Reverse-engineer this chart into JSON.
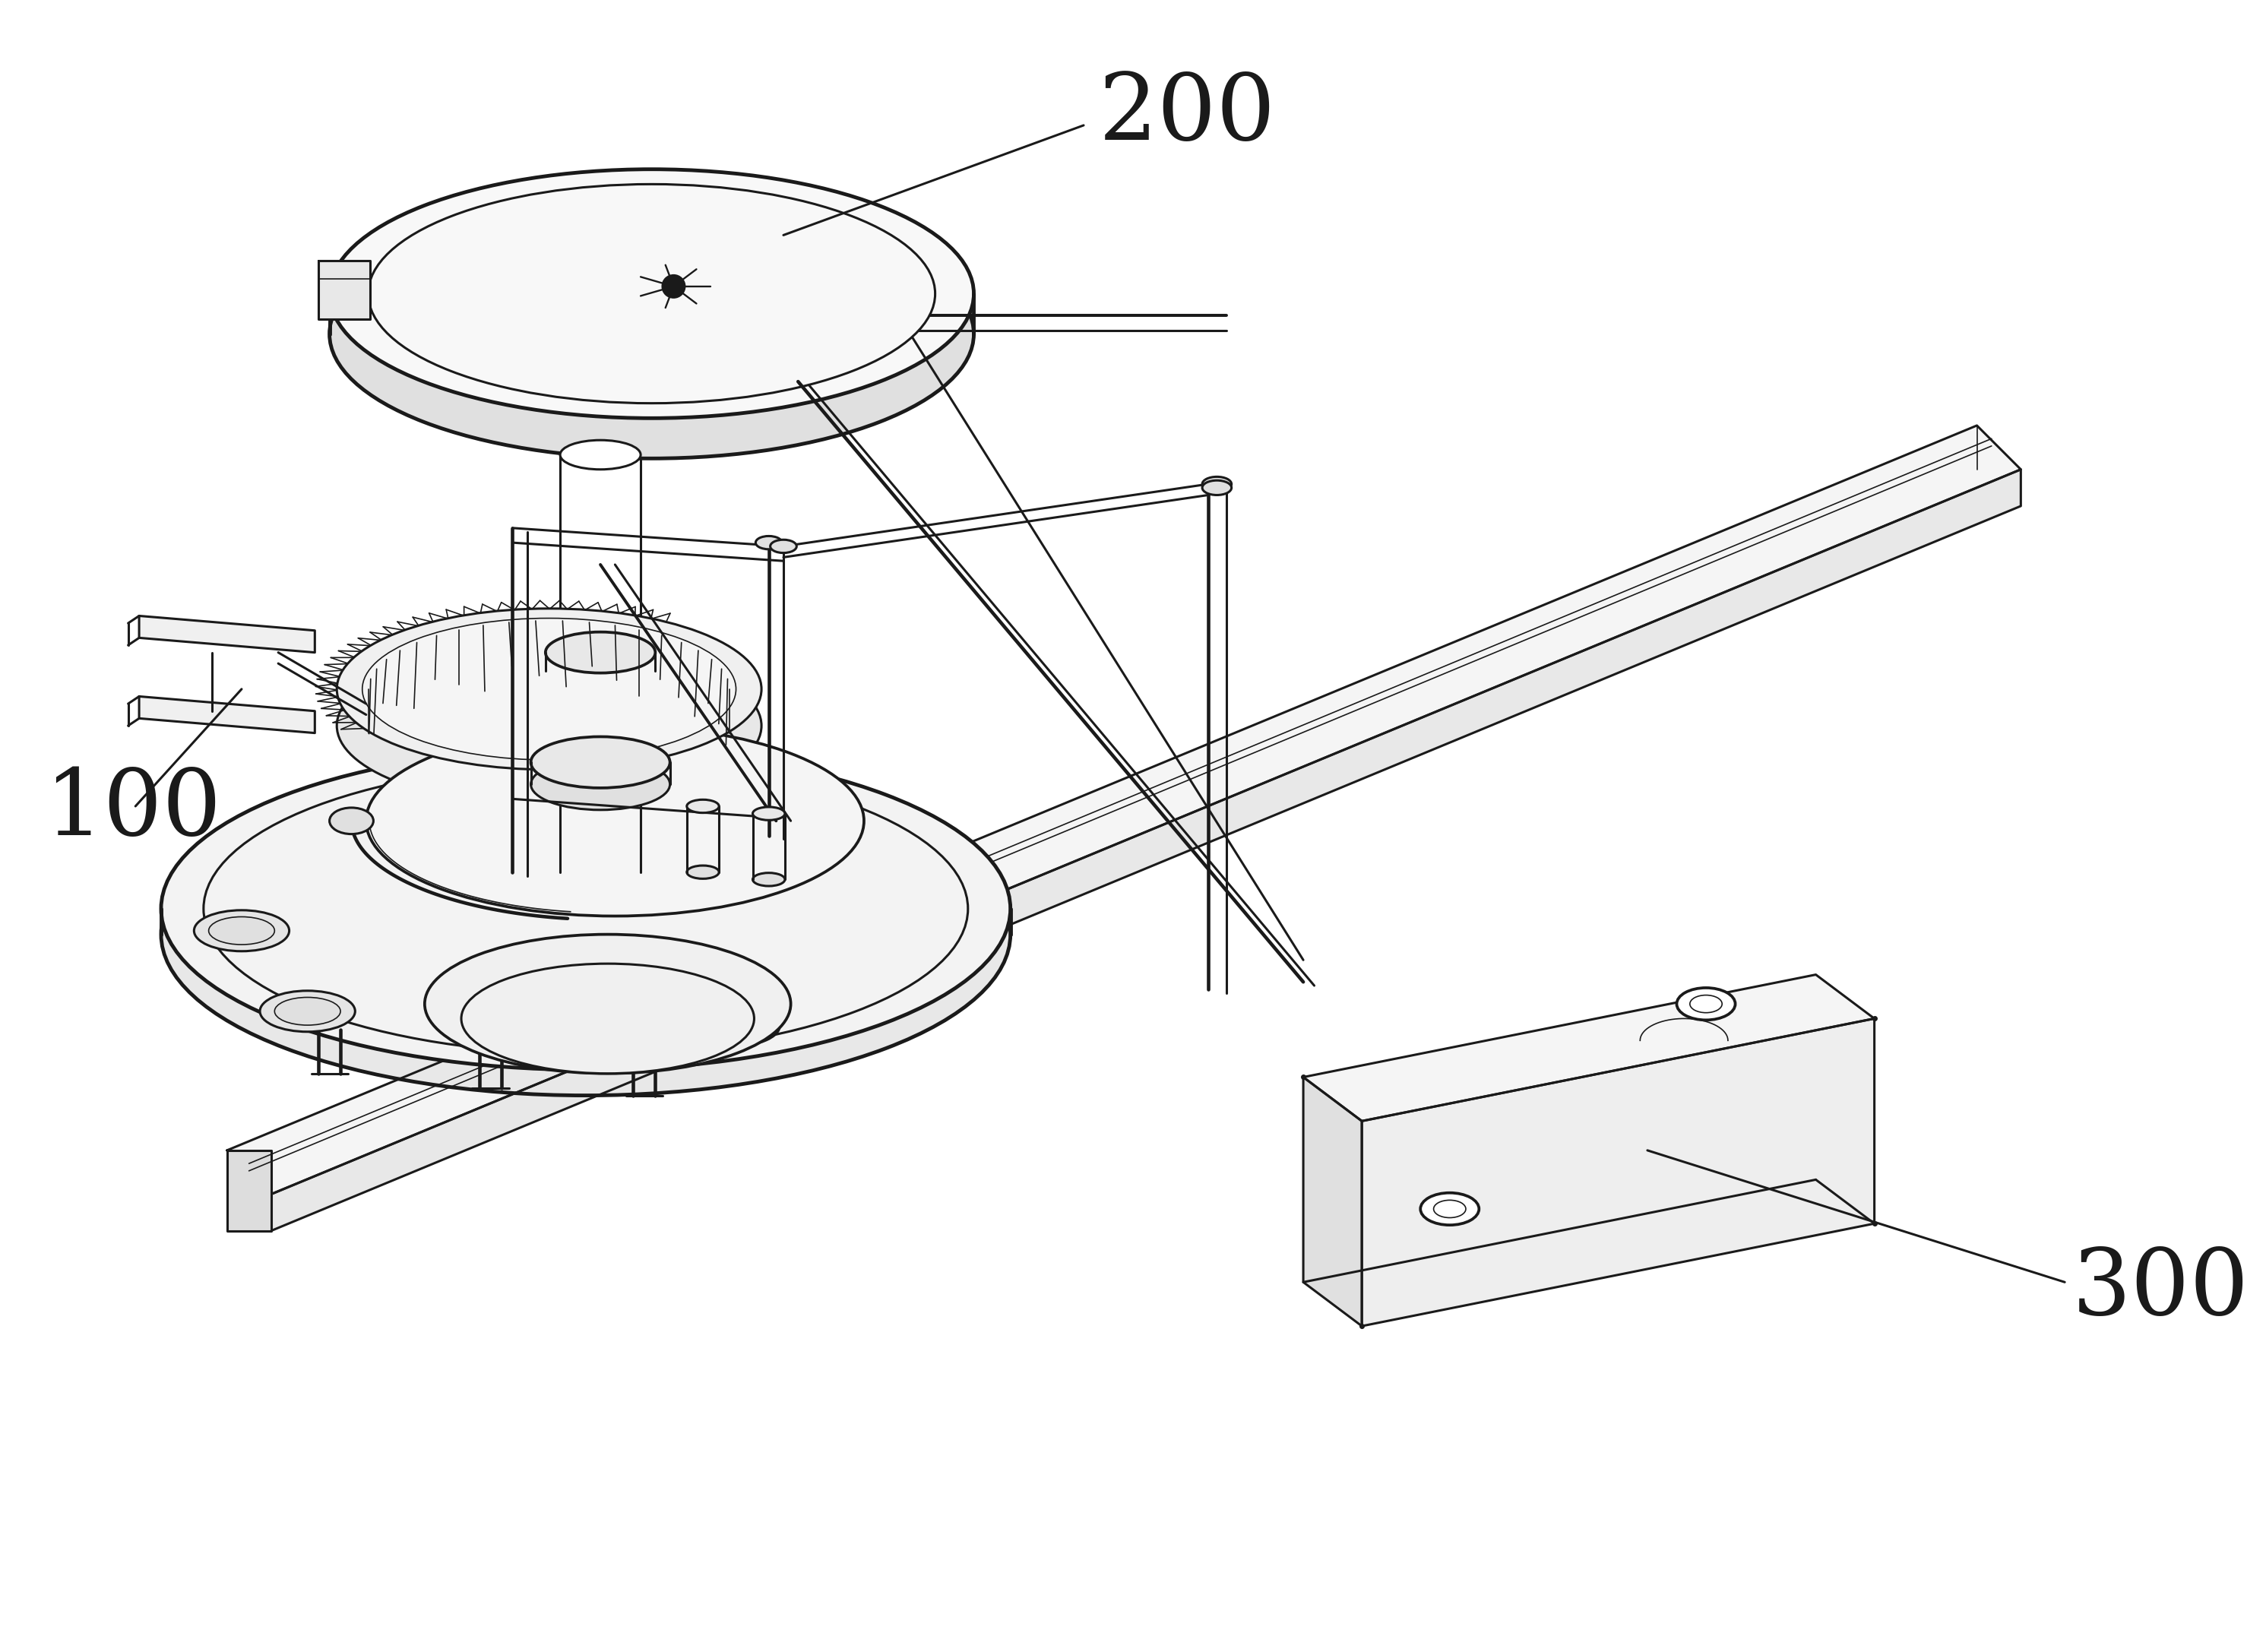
{
  "background_color": "#ffffff",
  "line_color": "#1a1a1a",
  "lw_main": 2.2,
  "lw_thin": 1.2,
  "lw_thick": 3.5,
  "font_size": 22,
  "label_200": "200",
  "label_100": "100",
  "label_300": "300"
}
